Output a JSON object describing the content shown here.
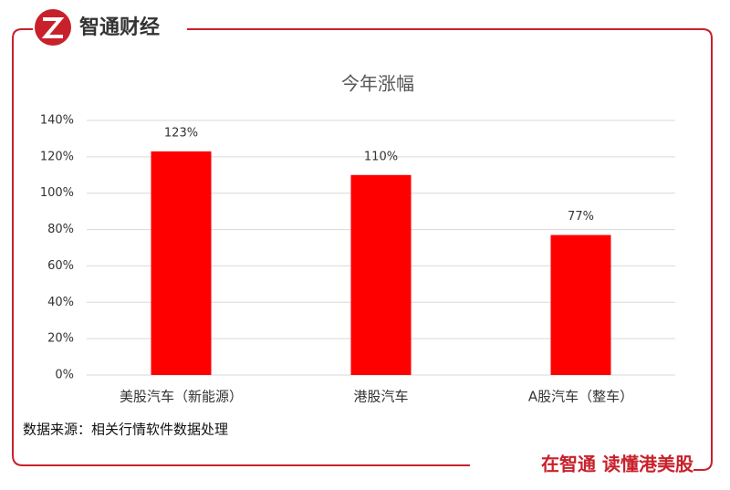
{
  "brand": "智通财经",
  "slogan": "在智通 读懂港美股",
  "source": "数据来源：相关行情软件数据处理",
  "chart_data": {
    "type": "bar",
    "title": "今年涨幅",
    "categories": [
      "美股汽车（新能源）",
      "港股汽车",
      "A股汽车（整车）"
    ],
    "values": [
      123,
      110,
      77
    ],
    "value_labels": [
      "123%",
      "110%",
      "77%"
    ],
    "color": "#ff0000",
    "ylim": [
      0,
      140
    ],
    "yticks": [
      {
        "value": 0,
        "label": "0%"
      },
      {
        "value": 20,
        "label": "20%"
      },
      {
        "value": 40,
        "label": "40%"
      },
      {
        "value": 60,
        "label": "60%"
      },
      {
        "value": 80,
        "label": "80%"
      },
      {
        "value": 100,
        "label": "100%"
      },
      {
        "value": 120,
        "label": "120%"
      },
      {
        "value": 140,
        "label": "140%"
      }
    ],
    "grid": true
  }
}
